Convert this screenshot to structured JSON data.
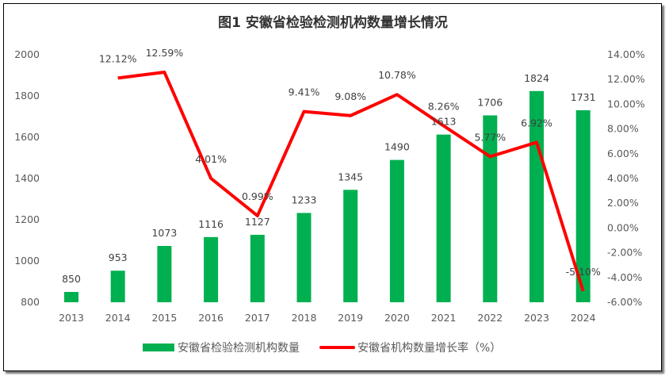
{
  "chart_data": {
    "type": "bar+line",
    "title": "图1 安徽省检验检测机构数量增长情况",
    "categories": [
      "2013",
      "2014",
      "2015",
      "2016",
      "2017",
      "2018",
      "2019",
      "2020",
      "2021",
      "2022",
      "2023",
      "2024"
    ],
    "series": [
      {
        "name": "安徽省检验检测机构数量",
        "type": "bar",
        "axis": "left",
        "color": "#00b050",
        "values": [
          850,
          953,
          1073,
          1116,
          1127,
          1233,
          1345,
          1490,
          1613,
          1706,
          1824,
          1731
        ],
        "labels": [
          "850",
          "953",
          "1073",
          "1116",
          "1127",
          "1233",
          "1345",
          "1490",
          "1613",
          "1706",
          "1824",
          "1731"
        ]
      },
      {
        "name": "安徽省机构数量增长率（%）",
        "type": "line",
        "axis": "right",
        "color": "#ff0000",
        "values": [
          null,
          12.12,
          12.59,
          4.01,
          0.99,
          9.41,
          9.08,
          10.78,
          8.26,
          5.77,
          6.92,
          -5.1
        ],
        "labels": [
          "",
          "12.12%",
          "12.59%",
          "4.01%",
          "0.99%",
          "9.41%",
          "9.08%",
          "10.78%",
          "8.26%",
          "5.77%",
          "6.92%",
          "-5.10%"
        ]
      }
    ],
    "ylim_left": [
      800,
      2000
    ],
    "yticks_left": [
      "800",
      "1000",
      "1200",
      "1400",
      "1600",
      "1800",
      "2000"
    ],
    "ylim_right": [
      -6,
      14
    ],
    "yticks_right": [
      "-6.00%",
      "-4.00%",
      "-2.00%",
      "0.00%",
      "2.00%",
      "4.00%",
      "6.00%",
      "8.00%",
      "10.00%",
      "12.00%",
      "14.00%"
    ],
    "grid": false,
    "legend_position": "bottom"
  }
}
